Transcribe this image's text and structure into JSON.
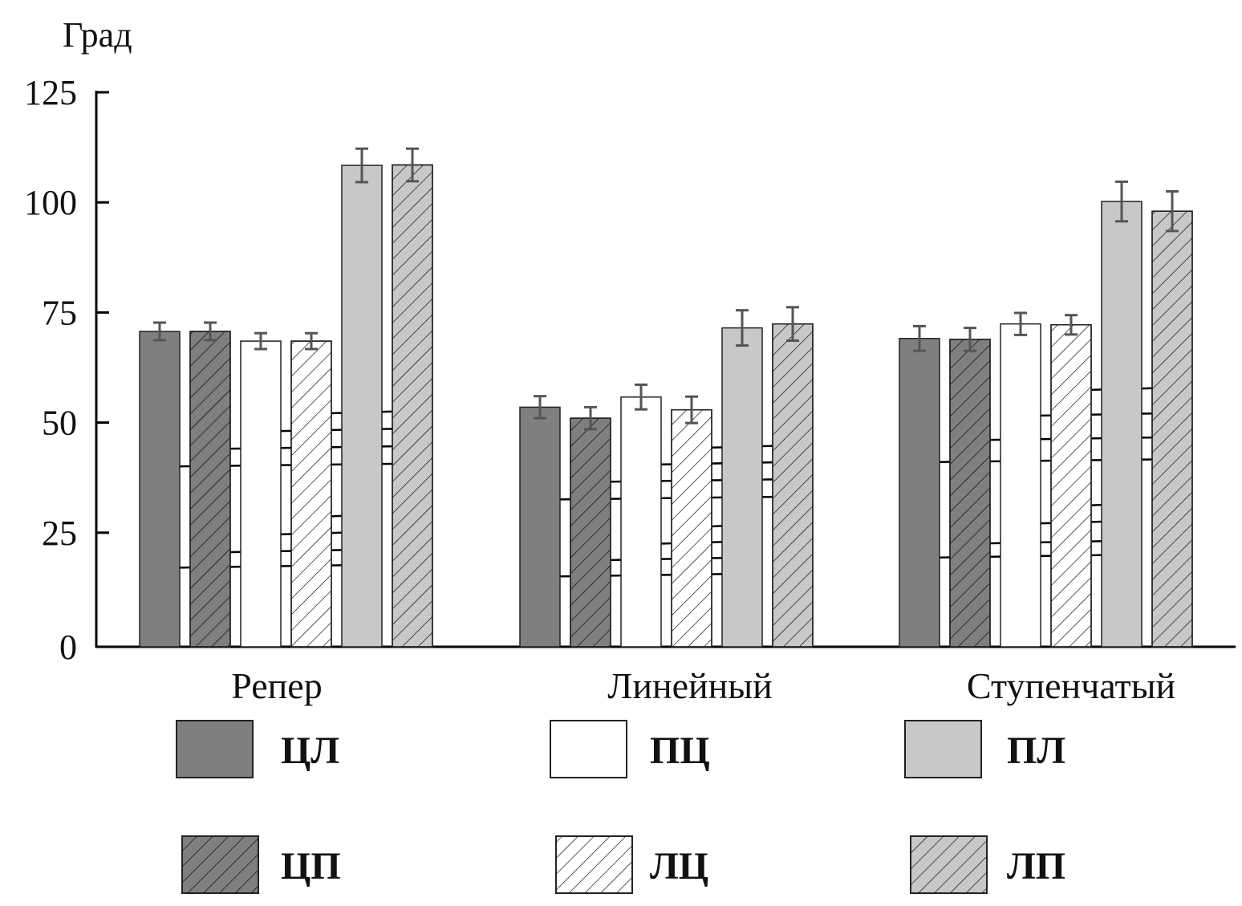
{
  "chart_data": {
    "type": "bar",
    "ylabel": "Град",
    "ylim": [
      0,
      125
    ],
    "yticks": [
      0,
      25,
      50,
      75,
      100,
      125
    ],
    "grid": false,
    "legend_position": "bottom",
    "categories": [
      "Репер",
      "Линейный",
      "Ступенчатый"
    ],
    "series": [
      {
        "name": "ЦЛ",
        "fill": "#7f7f7f",
        "hatched": false,
        "values": [
          70.7,
          53.5,
          69.1
        ],
        "errors": [
          2.0,
          2.5,
          2.8
        ]
      },
      {
        "name": "ЦП",
        "fill": "#7f7f7f",
        "hatched": true,
        "values": [
          70.7,
          51.0,
          68.9
        ],
        "errors": [
          2.0,
          2.5,
          2.6
        ]
      },
      {
        "name": "ПЦ",
        "fill": "#ffffff",
        "hatched": false,
        "values": [
          68.5,
          55.8,
          72.4
        ],
        "errors": [
          1.8,
          2.8,
          2.5
        ]
      },
      {
        "name": "ЛЦ",
        "fill": "#ffffff",
        "hatched": true,
        "values": [
          68.5,
          52.9,
          72.2
        ],
        "errors": [
          1.8,
          3.0,
          2.2
        ]
      },
      {
        "name": "ПЛ",
        "fill": "#c8c8c8",
        "hatched": false,
        "values": [
          108.4,
          71.5,
          100.2
        ],
        "errors": [
          3.8,
          4.0,
          4.5
        ]
      },
      {
        "name": "ЛП",
        "fill": "#c8c8c8",
        "hatched": true,
        "values": [
          108.5,
          72.4,
          98.0
        ],
        "errors": [
          3.7,
          3.8,
          4.5
        ]
      }
    ],
    "significance_lines": [
      {
        "category": 0,
        "from": "ЦЛ",
        "to": "ЛП",
        "y": 40
      },
      {
        "category": 0,
        "from": "ЦП",
        "to": "ЛП",
        "y": 44
      },
      {
        "category": 0,
        "from": "ПЦ",
        "to": "ЛП",
        "y": 48
      },
      {
        "category": 0,
        "from": "ЛЦ",
        "to": "ЛП",
        "y": 52
      },
      {
        "category": 0,
        "from": "ЦЛ",
        "to": "ПЛ",
        "y": 17
      },
      {
        "category": 0,
        "from": "ЦП",
        "to": "ПЛ",
        "y": 20.5
      },
      {
        "category": 0,
        "from": "ПЦ",
        "to": "ПЛ",
        "y": 24.5
      },
      {
        "category": 0,
        "from": "ЛЦ",
        "to": "ПЛ",
        "y": 28.5
      },
      {
        "category": 1,
        "from": "ЦЛ",
        "to": "ЛП",
        "y": 32.5
      },
      {
        "category": 1,
        "from": "ЦП",
        "to": "ЛП",
        "y": 36.5
      },
      {
        "category": 1,
        "from": "ПЦ",
        "to": "ЛП",
        "y": 40.4
      },
      {
        "category": 1,
        "from": "ЛЦ",
        "to": "ЛП",
        "y": 44.2
      },
      {
        "category": 1,
        "from": "ЦЛ",
        "to": "ПЛ",
        "y": 15
      },
      {
        "category": 1,
        "from": "ЦП",
        "to": "ПЛ",
        "y": 18.7
      },
      {
        "category": 1,
        "from": "ПЦ",
        "to": "ПЛ",
        "y": 22.4
      },
      {
        "category": 1,
        "from": "ЛЦ",
        "to": "ПЛ",
        "y": 26.2
      },
      {
        "category": 2,
        "from": "ЦЛ",
        "to": "ЛП",
        "y": 41
      },
      {
        "category": 2,
        "from": "ЦП",
        "to": "ЛП",
        "y": 46
      },
      {
        "category": 2,
        "from": "ПЦ",
        "to": "ЛП",
        "y": 51.5
      },
      {
        "category": 2,
        "from": "ЛЦ",
        "to": "ЛП",
        "y": 57.3
      },
      {
        "category": 2,
        "from": "ЦЛ",
        "to": "ПЛ",
        "y": 19.3
      },
      {
        "category": 2,
        "from": "ЦП",
        "to": "ПЛ",
        "y": 22.5
      },
      {
        "category": 2,
        "from": "ПЦ",
        "to": "ПЛ",
        "y": 27
      },
      {
        "category": 2,
        "from": "ЛЦ",
        "to": "ПЛ",
        "y": 31
      }
    ]
  }
}
